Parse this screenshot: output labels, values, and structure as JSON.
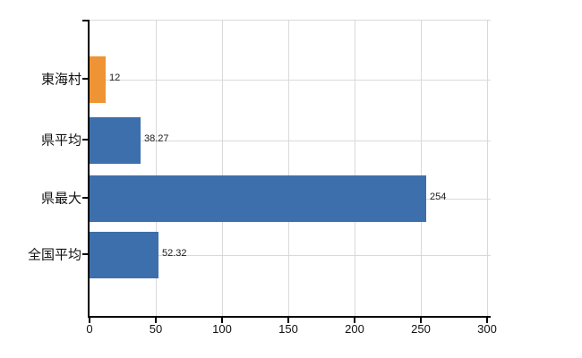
{
  "chart_data": {
    "type": "bar",
    "orientation": "horizontal",
    "title": "",
    "xlabel": "",
    "ylabel": "",
    "categories": [
      "東海村",
      "県平均",
      "県最大",
      "全国平均"
    ],
    "values": [
      12,
      38.27,
      254,
      52.32
    ],
    "value_labels": [
      "12",
      "38.27",
      "254",
      "52.32"
    ],
    "bar_colors": [
      "#ee9434",
      "#3d6fad",
      "#3d6fad",
      "#3d6fad"
    ],
    "xlim": [
      0,
      300
    ],
    "x_ticks": [
      0,
      50,
      100,
      150,
      200,
      250,
      300
    ],
    "grid": true,
    "legend": false
  },
  "colors": {
    "bar_blue": "#3d6fad",
    "bar_orange": "#ee9434",
    "grid": "#d9d9d9",
    "axis": "#000000",
    "text": "#111111",
    "background": "#ffffff"
  }
}
